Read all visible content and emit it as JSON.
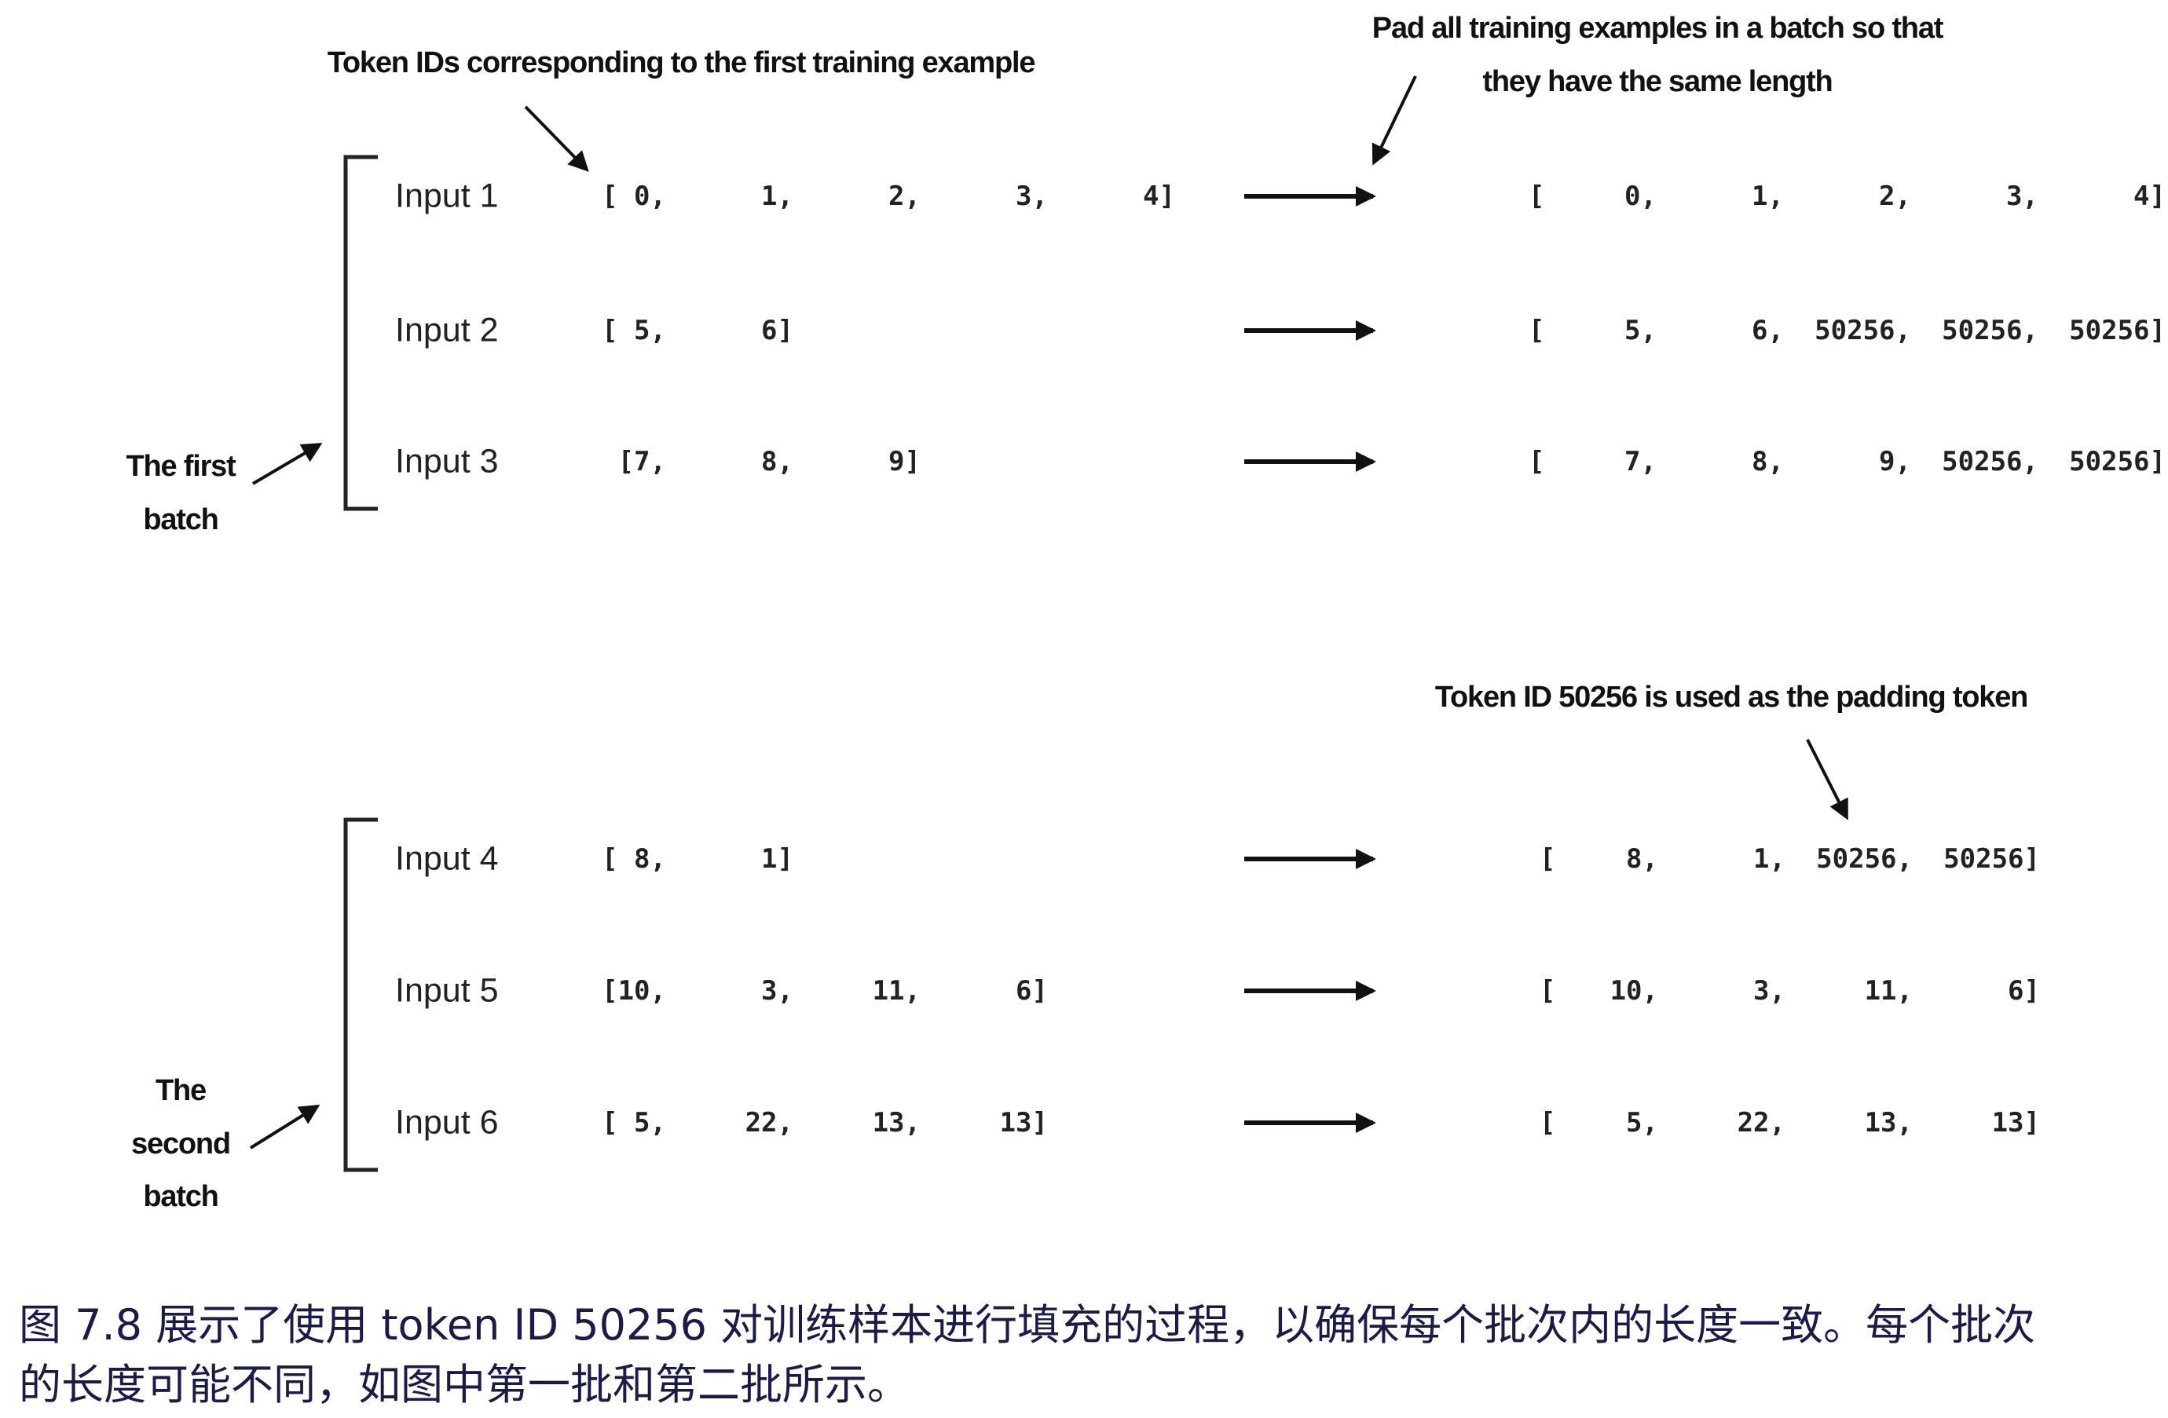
{
  "annotations": {
    "first_example": "Token IDs corresponding to the first training example",
    "pad_line1": "Pad all training examples in a batch so that",
    "pad_line2": "they have the same length",
    "padding_token": "Token ID 50256 is used as the padding token",
    "first_batch_line1": "The first",
    "first_batch_line2": "batch",
    "second_batch_line1": "The",
    "second_batch_line2": "second",
    "second_batch_line3": "batch"
  },
  "batches": [
    {
      "rows": [
        {
          "label": "Input 1",
          "tokens": [
            "[ 0,",
            "1,",
            "2,",
            "3,",
            "4]"
          ],
          "padded": [
            "0,",
            "1,",
            "2,",
            "3,",
            "4]"
          ]
        },
        {
          "label": "Input 2",
          "tokens": [
            "[ 5,",
            "6]"
          ],
          "padded": [
            "5,",
            "6,",
            "50256,",
            "50256,",
            "50256]"
          ]
        },
        {
          "label": "Input 3",
          "tokens": [
            "[7,",
            "8,",
            "9]"
          ],
          "padded": [
            "7,",
            "8,",
            "9,",
            "50256,",
            "50256]"
          ]
        }
      ]
    },
    {
      "rows": [
        {
          "label": "Input 4",
          "tokens": [
            "[ 8,",
            "1]"
          ],
          "padded": [
            "8,",
            "1,",
            "50256,",
            "50256]"
          ]
        },
        {
          "label": "Input 5",
          "tokens": [
            "[10,",
            "3,",
            "11,",
            "6]"
          ],
          "padded": [
            "10,",
            "3,",
            "11,",
            "6]"
          ]
        },
        {
          "label": "Input 6",
          "tokens": [
            "[ 5,",
            "22,",
            "13,",
            "13]"
          ],
          "padded": [
            "5,",
            "22,",
            "13,",
            "13]"
          ]
        }
      ]
    }
  ],
  "padded_open_bracket": "[",
  "caption": {
    "line1": "图 7.8 展示了使用 token ID 50256 对训练样本进行填充的过程，以确保每个批次内的长度一致。每个批次",
    "line2": "的长度可能不同，如图中第一批和第二批所示。"
  },
  "colors": {
    "caption": "#1b1b4a",
    "ink": "#111111"
  }
}
